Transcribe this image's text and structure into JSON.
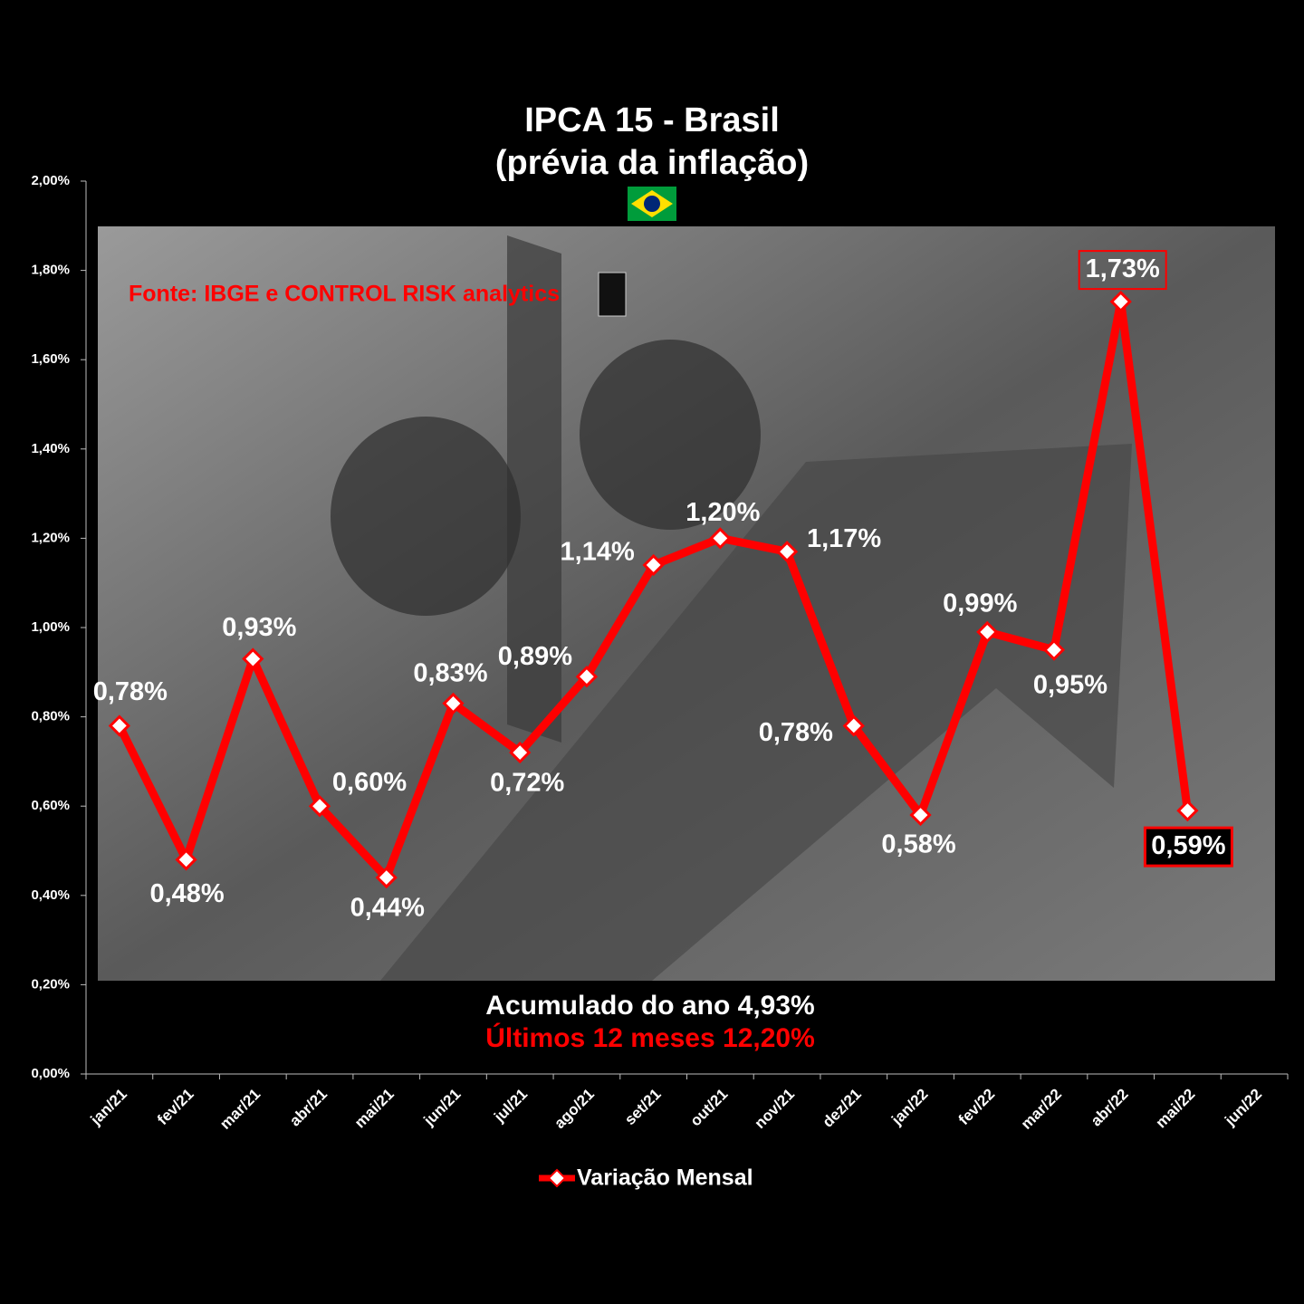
{
  "chart_data": {
    "type": "line",
    "title": "IPCA 15 - Brasil",
    "subtitle": "(prévia da inflação)",
    "source": "Fonte: IBGE e CONTROL RISK analytics",
    "annotations": [
      "Acumulado do ano 4,93%",
      "Últimos 12 meses 12,20%"
    ],
    "categories": [
      "jan/21",
      "fev/21",
      "mar/21",
      "abr/21",
      "mai/21",
      "jun/21",
      "jul/21",
      "ago/21",
      "set/21",
      "out/21",
      "nov/21",
      "dez/21",
      "jan/22",
      "fev/22",
      "mar/22",
      "abr/22",
      "mai/22",
      "jun/22"
    ],
    "series": [
      {
        "name": "Variação Mensal",
        "color": "#ff0000",
        "values": [
          0.78,
          0.48,
          0.93,
          0.6,
          0.44,
          0.83,
          0.72,
          0.89,
          1.14,
          1.2,
          1.17,
          0.78,
          0.58,
          0.99,
          0.95,
          1.73,
          0.59,
          null
        ],
        "value_labels": [
          "0,78%",
          "0,48%",
          "0,93%",
          "0,60%",
          "0,44%",
          "0,83%",
          "0,72%",
          "0,89%",
          "1,14%",
          "1,20%",
          "1,17%",
          "0,78%",
          "0,58%",
          "0,99%",
          "0,95%",
          "1,73%",
          "0,59%",
          null
        ]
      }
    ],
    "ylim": [
      0,
      2
    ],
    "yticks": [
      {
        "value": 0,
        "label": "0,00%"
      },
      {
        "value": 0.2,
        "label": "0,20%"
      },
      {
        "value": 0.4,
        "label": "0,40%"
      },
      {
        "value": 0.6,
        "label": "0,60%"
      },
      {
        "value": 0.8,
        "label": "0,80%"
      },
      {
        "value": 1,
        "label": "1,00%"
      },
      {
        "value": 1.2,
        "label": "1,20%"
      },
      {
        "value": 1.4,
        "label": "1,40%"
      },
      {
        "value": 1.6,
        "label": "1,60%"
      },
      {
        "value": 1.8,
        "label": "1,80%"
      },
      {
        "value": 2,
        "label": "2,00%"
      }
    ],
    "grid": false
  }
}
